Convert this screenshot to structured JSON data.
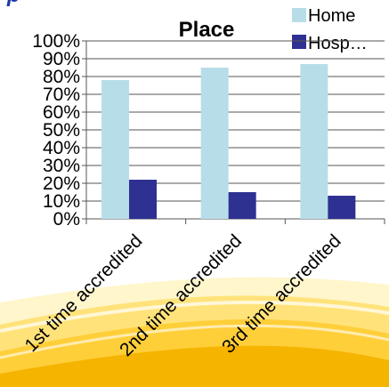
{
  "header_fragment": "p",
  "chart_data": {
    "type": "bar",
    "title": "Place",
    "categories": [
      "1st time accredited",
      "2nd time accredited",
      "3rd time accredited"
    ],
    "series": [
      {
        "name": "Home",
        "color": "#b7dee8",
        "values": [
          78,
          85,
          87
        ]
      },
      {
        "name": "Hosp…",
        "color": "#2e3192",
        "values": [
          22,
          15,
          13
        ]
      }
    ],
    "y_ticks": [
      "0%",
      "10%",
      "20%",
      "30%",
      "40%",
      "50%",
      "60%",
      "70%",
      "80%",
      "90%",
      "100%"
    ],
    "ylim": [
      0,
      100
    ],
    "grid": true,
    "legend_position": "top-right",
    "xlabel": "",
    "ylabel": ""
  },
  "colors": {
    "header_text": "#1f3aa6",
    "swoosh_light": "#fff3b0",
    "swoosh_mid": "#ffd966",
    "swoosh_dark": "#f5b400"
  }
}
